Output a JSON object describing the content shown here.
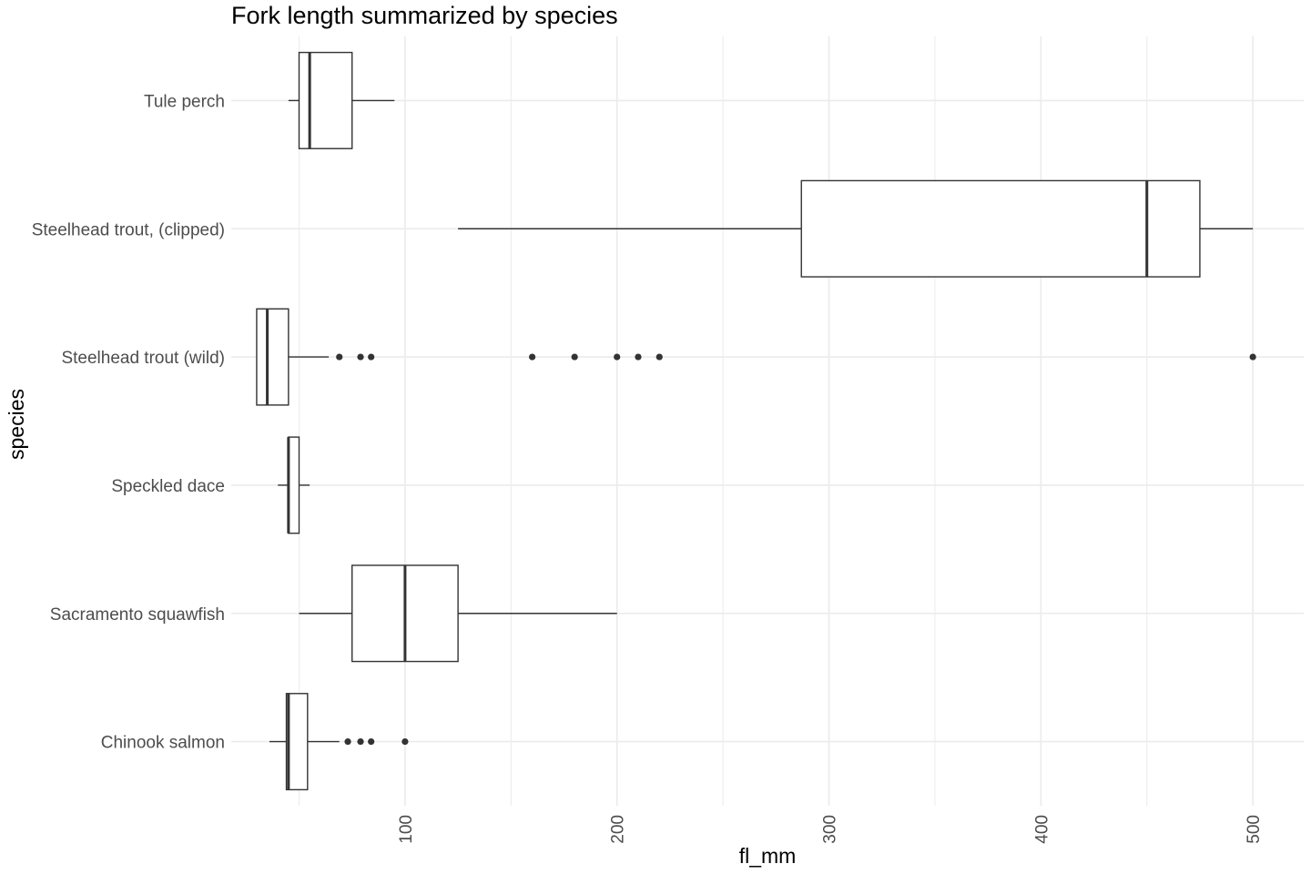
{
  "chart_data": {
    "type": "boxplot",
    "title": "Fork length summarized by species",
    "xlabel": "fl_mm",
    "ylabel": "species",
    "xlim": [
      18,
      524
    ],
    "x_ticks": [
      100,
      200,
      300,
      400,
      500
    ],
    "x_minor_ticks": [
      50,
      150,
      250,
      350,
      450
    ],
    "grid": true,
    "orientation": "horizontal",
    "categories": [
      "Tule perch",
      "Steelhead trout, (clipped)",
      "Steelhead trout (wild)",
      "Speckled dace",
      "Sacramento squawfish",
      "Chinook salmon"
    ],
    "boxes": [
      {
        "category": "Tule perch",
        "whisker_low": 45,
        "q1": 50,
        "median": 55,
        "q3": 75,
        "whisker_high": 95,
        "outliers": []
      },
      {
        "category": "Steelhead trout, (clipped)",
        "whisker_low": 125,
        "q1": 287,
        "median": 450,
        "q3": 475,
        "whisker_high": 500,
        "outliers": []
      },
      {
        "category": "Steelhead trout (wild)",
        "whisker_low": 30,
        "q1": 30,
        "median": 35,
        "q3": 45,
        "whisker_high": 64,
        "outliers": [
          69,
          79,
          84,
          160,
          180,
          200,
          210,
          220,
          500
        ]
      },
      {
        "category": "Speckled dace",
        "whisker_low": 40,
        "q1": 45,
        "median": 45,
        "q3": 50,
        "whisker_high": 55,
        "outliers": []
      },
      {
        "category": "Sacramento squawfish",
        "whisker_low": 50,
        "q1": 75,
        "median": 100,
        "q3": 125,
        "whisker_high": 200,
        "outliers": []
      },
      {
        "category": "Chinook salmon",
        "whisker_low": 36,
        "q1": 44,
        "median": 45,
        "q3": 54,
        "whisker_high": 69,
        "outliers": [
          73,
          79,
          84,
          100
        ]
      }
    ],
    "colors": {
      "box_stroke": "#333333",
      "outlier": "#333333",
      "grid": "#ebebeb",
      "text": "#4d4d4d"
    }
  }
}
